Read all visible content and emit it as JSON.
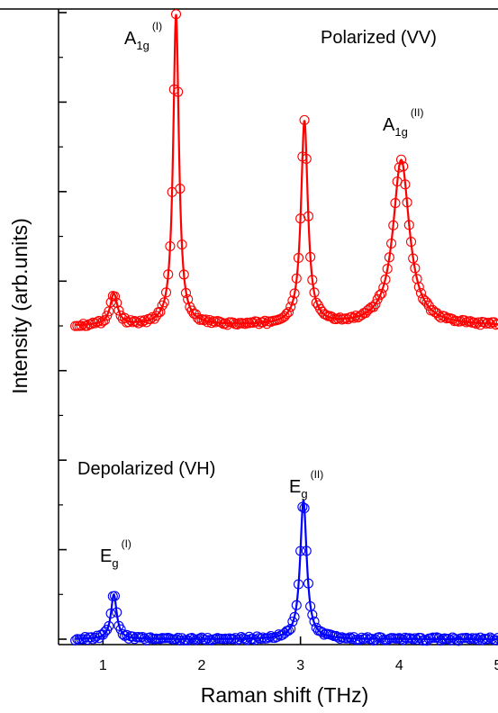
{
  "chart_data": {
    "type": "scatter",
    "xlabel": "Raman shift (THz)",
    "ylabel": "Intensity (arb.units)",
    "xlim": [
      0.55,
      5.0
    ],
    "ylim": [
      0,
      14
    ],
    "xticks": [
      1,
      2,
      3,
      4,
      5
    ],
    "x_tick_labels": [
      "1",
      "2",
      "3",
      "4",
      "5"
    ],
    "y_tick_labels_shown": false,
    "grid": false,
    "colors": {
      "polarized": "#ff0000",
      "depolarized": "#0000ff",
      "axis": "#000000"
    },
    "series": [
      {
        "style": "open circles + fitted line",
        "color": "#ff0000",
        "baseline": 7.0,
        "peaks": [
          {
            "center": 1.11,
            "height": 0.7,
            "width": 0.045
          },
          {
            "center": 1.74,
            "height": 6.95,
            "width": 0.035
          },
          {
            "center": 3.04,
            "height": 4.55,
            "width": 0.042
          },
          {
            "center": 4.02,
            "height": 3.7,
            "width": 0.1
          }
        ]
      },
      {
        "style": "open circles + fitted line",
        "color": "#0000ff",
        "baseline": 0.0,
        "peaks": [
          {
            "center": 1.11,
            "height": 1.0,
            "width": 0.035
          },
          {
            "center": 3.03,
            "height": 3.1,
            "width": 0.04
          }
        ]
      }
    ],
    "annotations": [
      {
        "id": "a1g-1",
        "base": "A",
        "sub": "1g",
        "sup": "(I)"
      },
      {
        "id": "a1g-2",
        "base": "A",
        "sub": "1g",
        "sup": "(II)"
      },
      {
        "id": "eg-1",
        "base": "E",
        "sub": "g",
        "sup": "(I)"
      },
      {
        "id": "eg-2",
        "base": "E",
        "sub": "g",
        "sup": "(II)"
      },
      {
        "id": "polarized",
        "text": "Polarized (VV)"
      },
      {
        "id": "depolarized",
        "text": "Depolarized (VH)"
      }
    ]
  }
}
